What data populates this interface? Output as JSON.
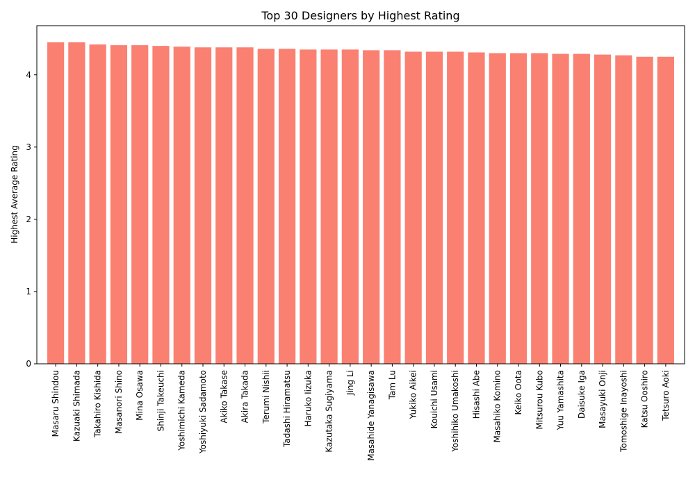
{
  "chart_data": {
    "type": "bar",
    "title": "Top 30 Designers by Highest Rating",
    "xlabel": "",
    "ylabel": "Highest Average Rating",
    "ylim": [
      0,
      4.68
    ],
    "yticks": [
      0,
      1,
      2,
      3,
      4
    ],
    "grid": false,
    "bar_color": "#fa8072",
    "categories": [
      "Masaru Shindou",
      "Kazuaki Shimada",
      "Takahiro Kishida",
      "Masanori Shino",
      "Mina Osawa",
      "Shinji Takeuchi",
      "Yoshimichi Kameda",
      "Yoshiyuki Sadamoto",
      "Akiko Takase",
      "Akira Takada",
      "Terumi Nishii",
      "Tadashi Hiramatsu",
      "Haruko Iizuka",
      "Kazutaka Sugiyama",
      "Jing Li",
      "Masahide Yanagisawa",
      "Tam Lu",
      "Yukiko Aikei",
      "Kouichi Usami",
      "Yoshihiko Umakoshi",
      "Hisashi Abe",
      "Masahiko Komino",
      "Keiko Oota",
      "Mitsurou Kubo",
      "Yuu Yamashita",
      "Daisuke Iga",
      "Masayuki Onji",
      "Tomoshige Inayoshi",
      "Katsu Ooshiro",
      "Tetsuro Aoki"
    ],
    "values": [
      4.45,
      4.45,
      4.42,
      4.41,
      4.41,
      4.4,
      4.39,
      4.38,
      4.38,
      4.38,
      4.36,
      4.36,
      4.35,
      4.35,
      4.35,
      4.34,
      4.34,
      4.32,
      4.32,
      4.32,
      4.31,
      4.3,
      4.3,
      4.3,
      4.29,
      4.29,
      4.28,
      4.27,
      4.25,
      4.25
    ]
  }
}
